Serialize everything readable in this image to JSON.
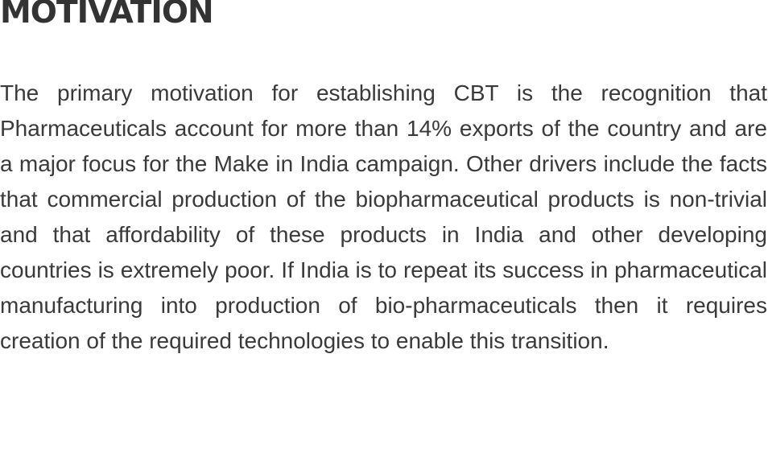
{
  "section": {
    "title": "MOTIVATION",
    "paragraph": "The primary motivation for establishing CBT is the recognition that Pharmaceuticals account for more than 14% exports of the country and are a major focus for the Make in India campaign. Other drivers include the facts that commercial production of the biopharmaceutical products is non-trivial and that affordability of these products in India and other developing countries is extremely poor. If India is to repeat its success in pharmaceutical manufacturing into production of bio-pharmaceuticals then it requires creation of the required technologies to enable this transition."
  },
  "colors": {
    "title": "#333333",
    "text": "#3a3a3a",
    "background": "#ffffff"
  }
}
